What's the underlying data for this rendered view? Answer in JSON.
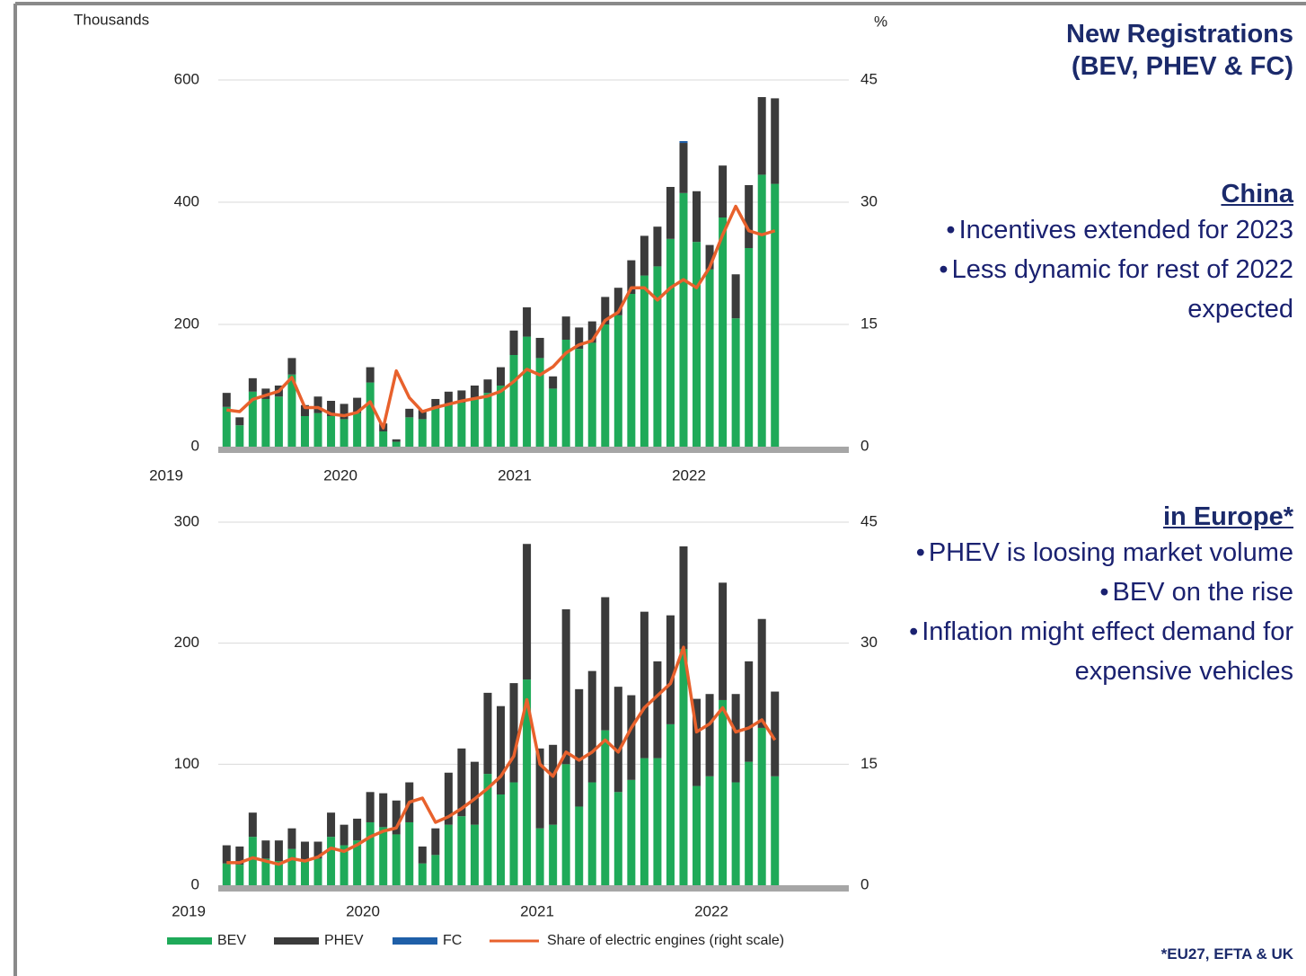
{
  "chart_data": [
    {
      "type": "bar",
      "stacked": true,
      "ylabel": "Thousands",
      "y2label": "%",
      "xlabels": [
        "2019",
        "2020",
        "2021",
        "2022"
      ],
      "categories": [
        null,
        null,
        null,
        null,
        null,
        null,
        null,
        null,
        null,
        null,
        null,
        null,
        null,
        null,
        null,
        null,
        null,
        null,
        null,
        null,
        null,
        null,
        null,
        null,
        null,
        null,
        null,
        null,
        null,
        null,
        null,
        null,
        null,
        null,
        null,
        null,
        null,
        null,
        null,
        null,
        null,
        null,
        null
      ],
      "ylim": [
        0,
        600
      ],
      "yticks": [
        0,
        200,
        400,
        600
      ],
      "y2lim": [
        0,
        45
      ],
      "y2ticks": [
        0,
        15,
        30,
        45
      ],
      "grid": true,
      "series": [
        {
          "name": "BEV",
          "color": "#1faa59",
          "values": [
            65,
            35,
            90,
            78,
            82,
            118,
            50,
            55,
            50,
            45,
            55,
            105,
            25,
            8,
            48,
            45,
            62,
            70,
            72,
            78,
            88,
            100,
            150,
            180,
            145,
            95,
            175,
            160,
            170,
            200,
            215,
            250,
            280,
            295,
            340,
            415,
            335,
            290,
            375,
            210,
            325,
            445,
            430
          ]
        },
        {
          "name": "PHEV",
          "color": "#3b3b3b",
          "values": [
            23,
            13,
            22,
            17,
            18,
            27,
            18,
            27,
            25,
            25,
            25,
            25,
            13,
            4,
            14,
            15,
            16,
            20,
            20,
            22,
            22,
            30,
            40,
            48,
            33,
            20,
            38,
            35,
            35,
            45,
            45,
            55,
            65,
            65,
            85,
            82,
            83,
            40,
            85,
            72,
            103,
            127,
            140
          ]
        },
        {
          "name": "FC",
          "color": "#1f5fa8",
          "values": [
            0,
            0,
            0,
            0,
            0,
            0,
            0,
            0,
            0,
            0,
            0,
            0,
            0,
            0,
            0,
            0,
            0,
            0,
            0,
            0,
            0,
            0,
            0,
            0,
            0,
            0,
            0,
            0,
            0,
            0,
            0,
            0,
            0,
            0,
            0,
            3,
            0,
            0,
            0,
            0,
            0,
            0,
            0
          ]
        },
        {
          "name": "Share of electric engines (right scale)",
          "type": "line",
          "axis": "y2",
          "color": "#e8612c",
          "values": [
            4.5,
            4.3,
            5.8,
            6.3,
            6.8,
            8.5,
            4.8,
            4.8,
            4.0,
            3.8,
            4.2,
            5.5,
            2.3,
            9.3,
            6.0,
            4.3,
            4.8,
            5.2,
            5.6,
            5.9,
            6.2,
            6.8,
            8.0,
            9.5,
            8.8,
            9.8,
            11.5,
            12.5,
            13.0,
            15.5,
            16.5,
            19.5,
            19.5,
            18.0,
            19.5,
            20.5,
            19.5,
            22.0,
            26.0,
            29.5,
            26.5,
            26.0,
            26.5
          ]
        }
      ]
    },
    {
      "type": "bar",
      "stacked": true,
      "xlabels": [
        "2019",
        "2020",
        "2021",
        "2022"
      ],
      "categories": [
        null,
        null,
        null,
        null,
        null,
        null,
        null,
        null,
        null,
        null,
        null,
        null,
        null,
        null,
        null,
        null,
        null,
        null,
        null,
        null,
        null,
        null,
        null,
        null,
        null,
        null,
        null,
        null,
        null,
        null,
        null,
        null,
        null,
        null,
        null,
        null,
        null,
        null,
        null,
        null,
        null,
        null,
        null
      ],
      "ylim": [
        0,
        300
      ],
      "yticks": [
        0,
        100,
        200,
        300
      ],
      "y2lim": [
        0,
        45
      ],
      "y2ticks": [
        0,
        15,
        30,
        45
      ],
      "grid": true,
      "series": [
        {
          "name": "BEV",
          "color": "#1faa59",
          "values": [
            18,
            17,
            40,
            22,
            20,
            30,
            20,
            22,
            40,
            33,
            37,
            52,
            48,
            42,
            52,
            18,
            25,
            50,
            57,
            50,
            92,
            75,
            85,
            170,
            47,
            50,
            100,
            65,
            85,
            128,
            77,
            87,
            105,
            105,
            133,
            195,
            82,
            90,
            153,
            85,
            102,
            130,
            90
          ]
        },
        {
          "name": "PHEV",
          "color": "#3b3b3b",
          "values": [
            15,
            15,
            20,
            15,
            17,
            17,
            16,
            14,
            20,
            17,
            18,
            25,
            28,
            28,
            33,
            14,
            22,
            43,
            56,
            52,
            67,
            73,
            82,
            112,
            66,
            66,
            128,
            97,
            92,
            110,
            87,
            70,
            121,
            80,
            90,
            85,
            72,
            68,
            97,
            73,
            83,
            90,
            70
          ]
        },
        {
          "name": "FC",
          "color": "#1f5fa8",
          "values": [
            0,
            0,
            0,
            0,
            0,
            0,
            0,
            0,
            0,
            0,
            0,
            0,
            0,
            0,
            0,
            0,
            0,
            0,
            0,
            0,
            0,
            0,
            0,
            0,
            0,
            0,
            0,
            0,
            0,
            0,
            0,
            0,
            0,
            0,
            0,
            0,
            0,
            0,
            0,
            0,
            0,
            0,
            0
          ]
        },
        {
          "name": "Share of electric engines (right scale)",
          "type": "line",
          "axis": "y2",
          "color": "#e8612c",
          "values": [
            2.8,
            2.8,
            3.4,
            3.0,
            2.6,
            3.3,
            3.0,
            3.5,
            4.6,
            4.2,
            5.0,
            6.0,
            6.7,
            7.1,
            10.3,
            10.8,
            7.8,
            8.5,
            9.5,
            10.7,
            12.0,
            13.5,
            16.0,
            23.0,
            15.0,
            13.5,
            16.5,
            15.5,
            16.5,
            18.0,
            16.5,
            19.5,
            22.0,
            23.5,
            25.0,
            29.5,
            19.0,
            20.0,
            22.0,
            19.0,
            19.5,
            20.5,
            18.0
          ]
        }
      ]
    }
  ],
  "panel": {
    "title": [
      "New Registrations",
      "(BEV, PHEV & FC)"
    ],
    "sections": [
      {
        "heading": "China",
        "bullets": [
          "Incentives extended for 2023",
          "Less dynamic for rest of 2022 expected"
        ]
      },
      {
        "heading": "in Europe*",
        "bullets": [
          "PHEV is loosing market volume",
          "BEV on the rise",
          "Inflation might effect demand for expensive vehicles"
        ]
      }
    ],
    "footnote": "*EU27, EFTA & UK"
  }
}
